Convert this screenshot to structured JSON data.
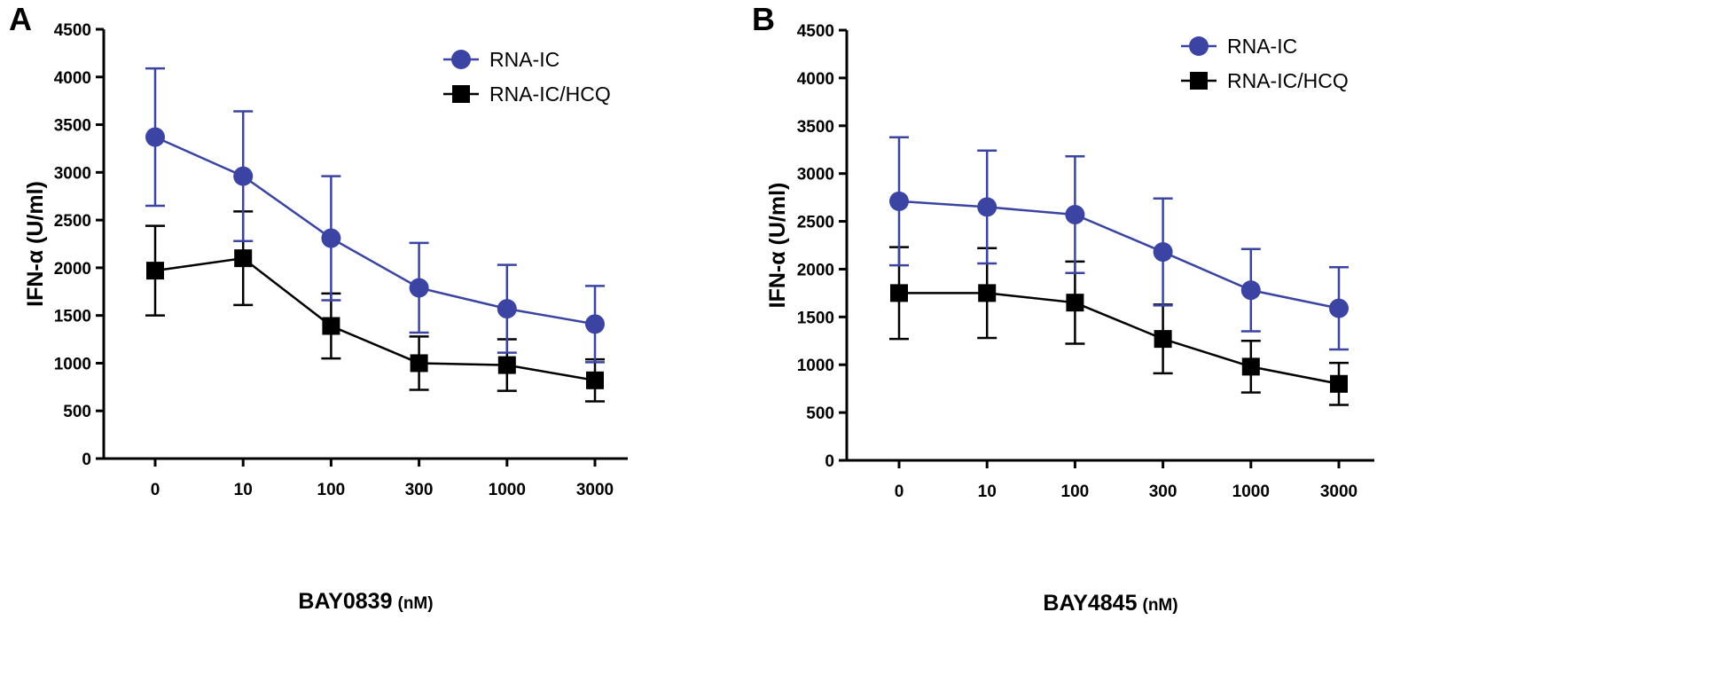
{
  "chart_data": [
    {
      "type": "line",
      "panel": "A",
      "categories": [
        "0",
        "10",
        "100",
        "300",
        "1000",
        "3000"
      ],
      "xlabel_main": "BAY0839",
      "xlabel_unit": "(nM)",
      "ylabel": "IFN-α (U/ml)",
      "ylim": [
        0,
        4500
      ],
      "yticks": [
        0,
        500,
        1000,
        1500,
        2000,
        2500,
        3000,
        3500,
        4000,
        4500
      ],
      "legend_position": "top-right",
      "series": [
        {
          "name": "RNA-IC",
          "color": "#3b44a3",
          "marker": "circle",
          "values": [
            3370,
            2960,
            2310,
            1790,
            1570,
            1410
          ],
          "error": [
            720,
            680,
            650,
            470,
            460,
            400
          ]
        },
        {
          "name": "RNA-IC/HCQ",
          "color": "#000000",
          "marker": "square",
          "values": [
            1970,
            2100,
            1390,
            1000,
            980,
            820
          ],
          "error": [
            470,
            490,
            340,
            280,
            270,
            220
          ]
        }
      ]
    },
    {
      "type": "line",
      "panel": "B",
      "categories": [
        "0",
        "10",
        "100",
        "300",
        "1000",
        "3000"
      ],
      "xlabel_main": "BAY4845",
      "xlabel_unit": "(nM)",
      "ylabel": "IFN-α (U/ml)",
      "ylim": [
        0,
        4500
      ],
      "yticks": [
        0,
        500,
        1000,
        1500,
        2000,
        2500,
        3000,
        3500,
        4000,
        4500
      ],
      "legend_position": "top-right",
      "series": [
        {
          "name": "RNA-IC",
          "color": "#3b44a3",
          "marker": "circle",
          "values": [
            2710,
            2650,
            2570,
            2180,
            1780,
            1590
          ],
          "error": [
            670,
            590,
            610,
            560,
            430,
            430
          ]
        },
        {
          "name": "RNA-IC/HCQ",
          "color": "#000000",
          "marker": "square",
          "values": [
            1750,
            1750,
            1650,
            1270,
            980,
            800
          ],
          "error": [
            480,
            470,
            430,
            360,
            270,
            220
          ]
        }
      ]
    }
  ]
}
